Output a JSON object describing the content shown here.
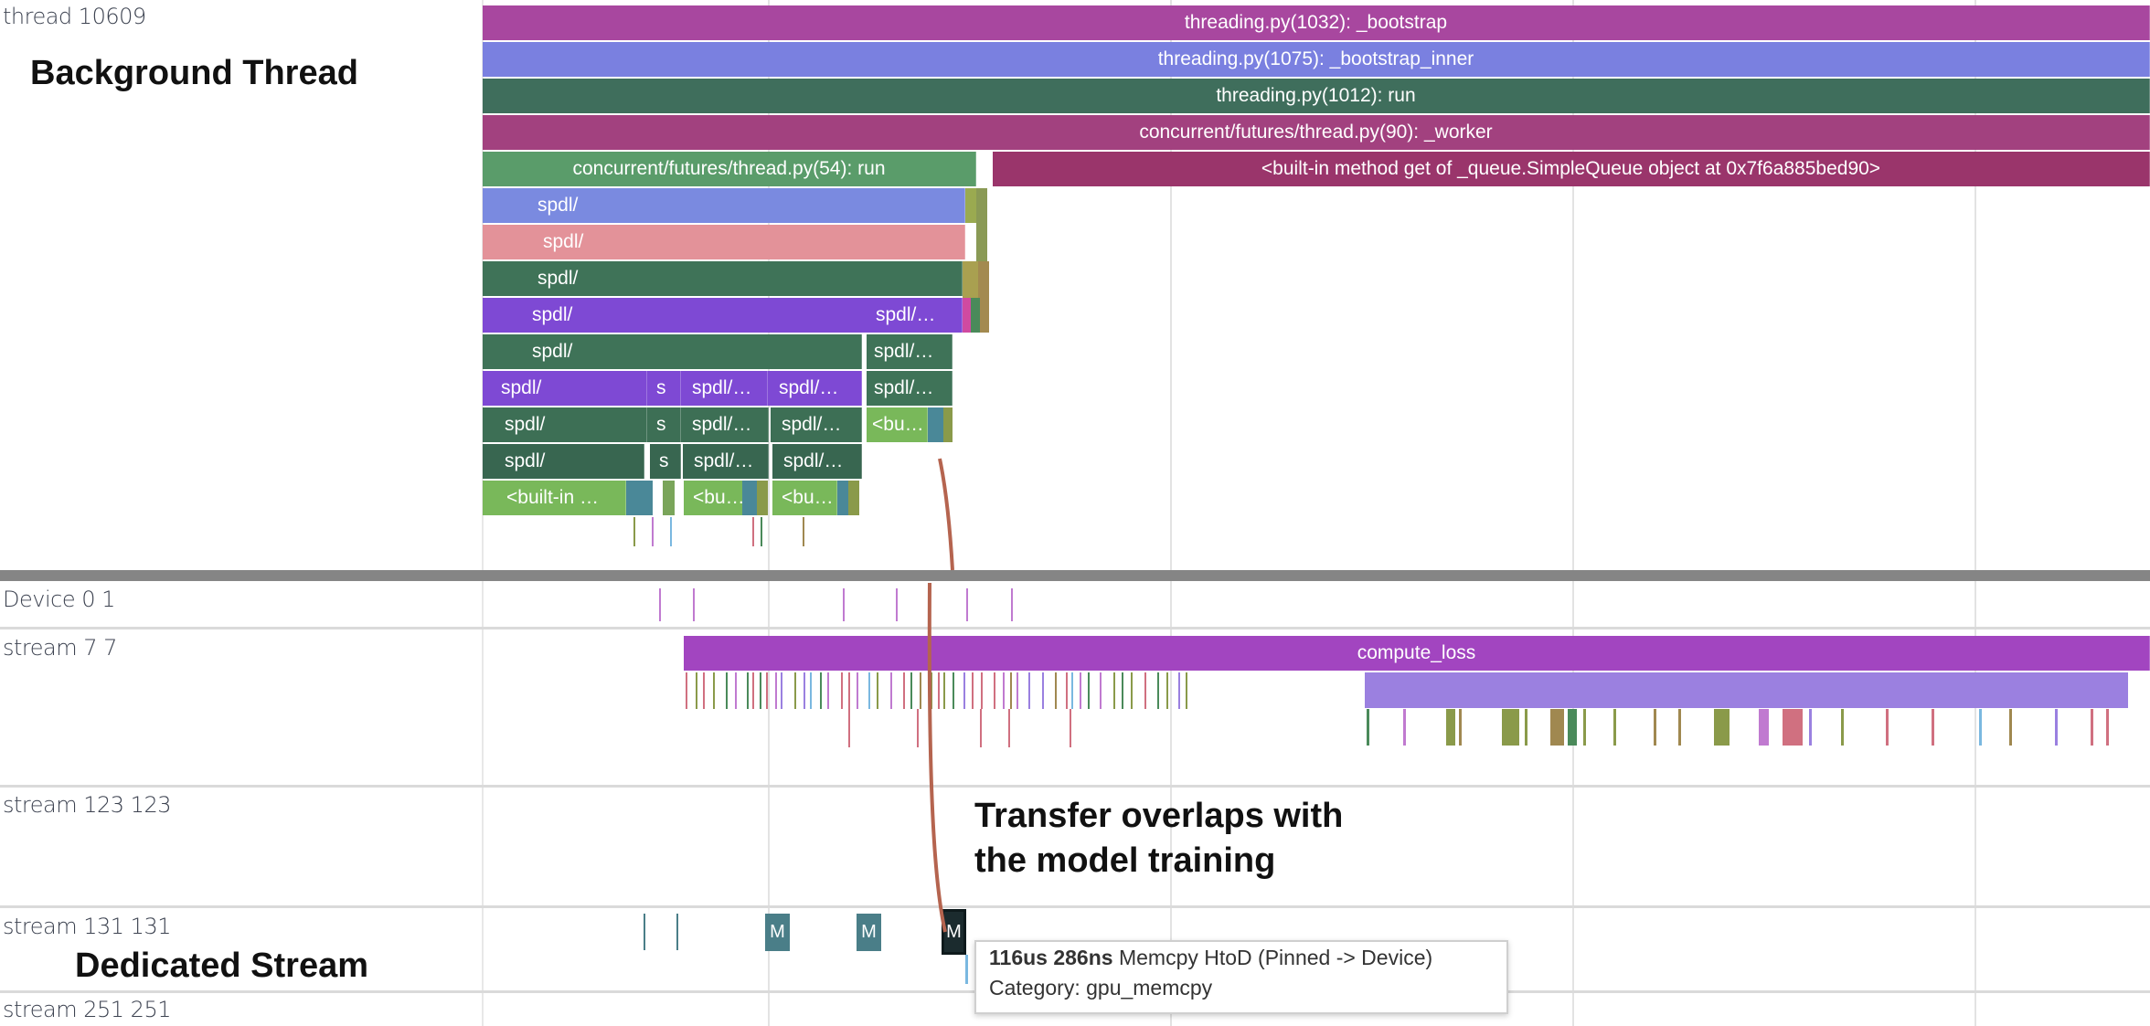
{
  "tracks": {
    "thread": "thread 10609",
    "device": "Device 0 1",
    "stream7": "stream 7 7",
    "stream123": "stream 123 123",
    "stream131": "stream 131 131",
    "stream251": "stream 251 251"
  },
  "annotations": {
    "background_thread": "Background Thread",
    "transfer_line1": "Transfer overlaps with",
    "transfer_line2": "the model training",
    "dedicated_stream": "Dedicated Stream"
  },
  "flame": [
    [
      "threading.py(1032): _bootstrap"
    ],
    [
      "threading.py(1075): _bootstrap_inner"
    ],
    [
      "threading.py(1012): run"
    ],
    [
      "concurrent/futures/thread.py(90): _worker"
    ],
    [
      "concurrent/futures/thread.py(54): run",
      "<built-in method get of _queue.SimpleQueue object at 0x7f6a885bed90>"
    ],
    [
      "spdl/"
    ],
    [
      "spdl/"
    ],
    [
      "spdl/"
    ],
    [
      "spdl/",
      "spdl/…"
    ],
    [
      "spdl/",
      "spdl/…"
    ],
    [
      "spdl/",
      "s",
      "spdl/…",
      "spdl/…",
      "spdl/…"
    ],
    [
      "spdl/",
      "s",
      "spdl/…",
      "spdl/…",
      "<bu…"
    ],
    [
      "spdl/",
      "s",
      "spdl/…",
      "spdl/…"
    ],
    [
      "<built-in …",
      "<bu…",
      "<bu…"
    ]
  ],
  "gpu": {
    "compute_label": "compute_loss",
    "memcpy_marker": "M"
  },
  "tooltip": {
    "duration": "116us 286ns",
    "name": "Memcpy HtoD (Pinned -> Device)",
    "category": "Category: gpu_memcpy"
  },
  "colors": {
    "bootstrap": "#a8479f",
    "bootstrap_inner": "#7a80e0",
    "run": "#3f6e5c",
    "worker": "#a2417f",
    "futures_run": "#5a9c6a",
    "queue_get": "#9a356b",
    "compute_loss": "#a245c0",
    "arrow": "#b5644f"
  }
}
